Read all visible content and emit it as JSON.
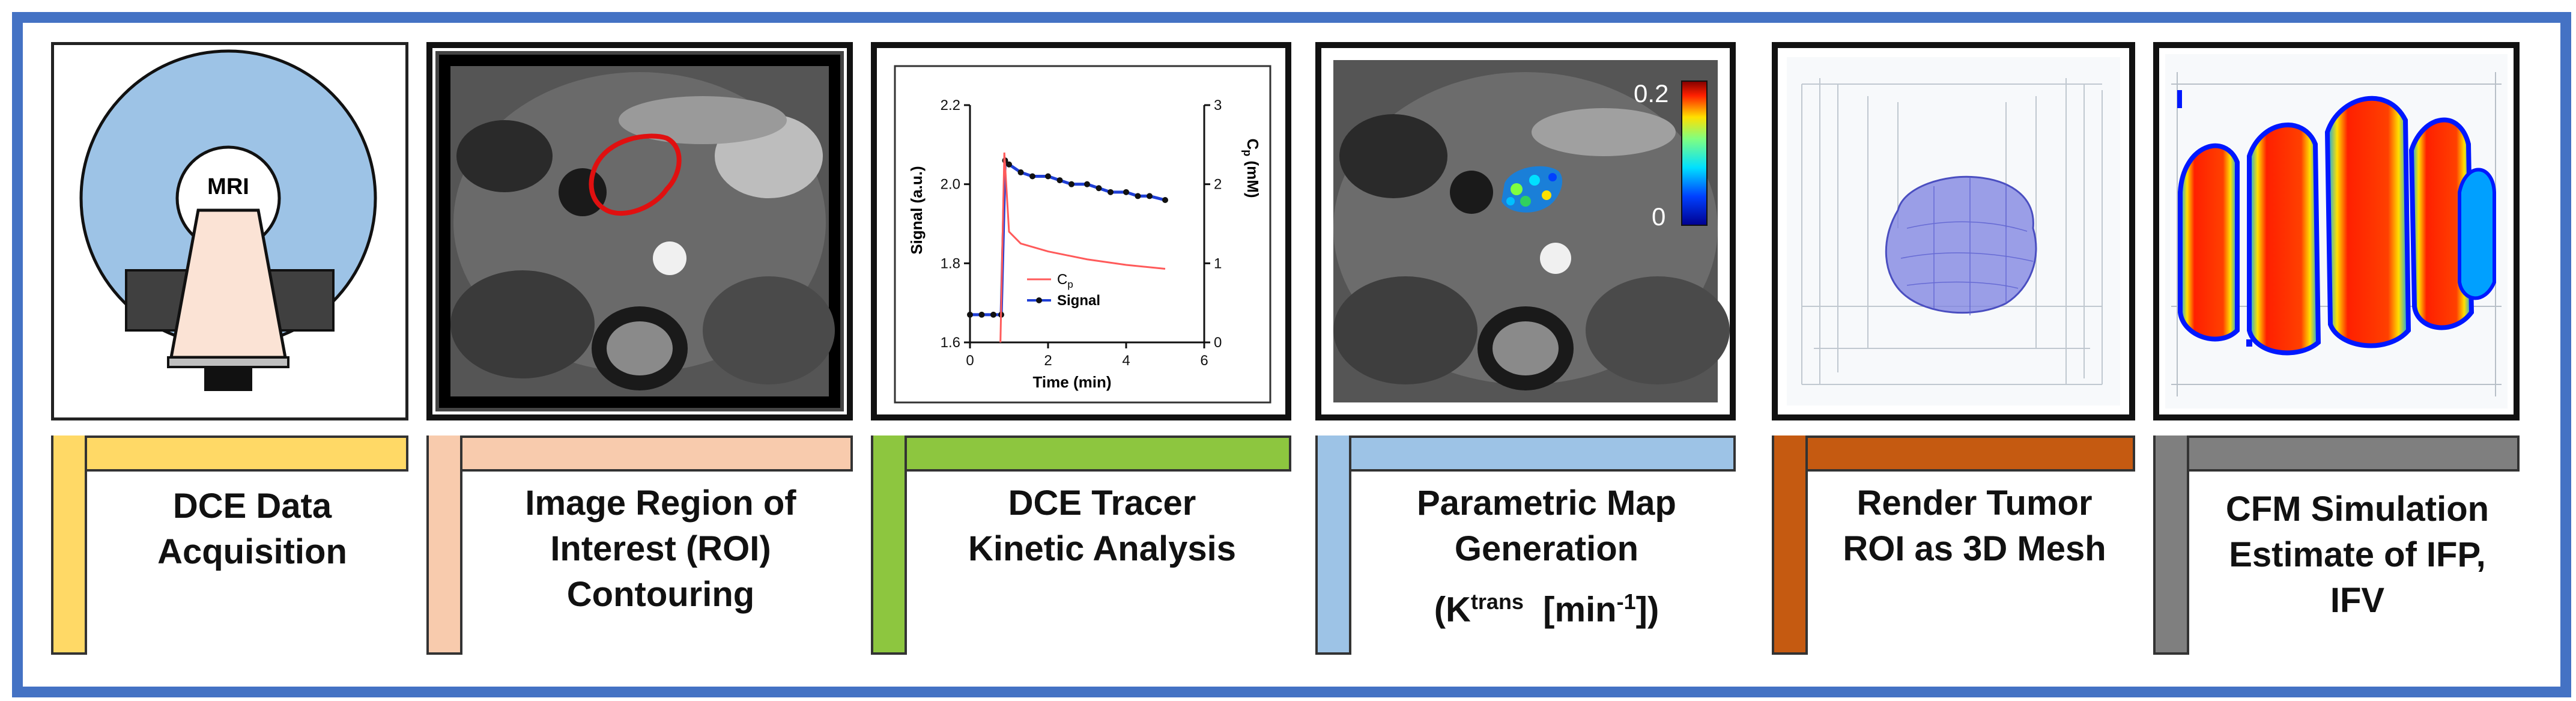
{
  "steps": [
    {
      "label_lines": [
        "DCE Data",
        "Acquisition"
      ],
      "color": "#ffd966"
    },
    {
      "label_lines": [
        "Image Region of",
        "Interest (ROI)",
        "Contouring"
      ],
      "color": "#f8cbad"
    },
    {
      "label_lines": [
        "DCE Tracer",
        "Kinetic Analysis"
      ],
      "color": "#8dc63f"
    },
    {
      "label_lines": [
        "Parametric Map",
        "Generation"
      ],
      "label_formula": {
        "prefix": "(K",
        "sup": "trans",
        "mid": "  [min",
        "sup2": "-1",
        "suffix": "])"
      },
      "color": "#9dc3e6"
    },
    {
      "label_lines": [
        "Render Tumor",
        "ROI as 3D Mesh"
      ],
      "color": "#c55a11"
    },
    {
      "label_lines": [
        "CFM Simulation",
        "Estimate of IFP,",
        "IFV"
      ],
      "color": "#7f7f7f"
    }
  ],
  "mri_label": "MRI",
  "parametric_map": {
    "scale_max": "0.2",
    "scale_min": "0"
  },
  "kinetic_chart": {
    "y_left_label": "Signal (a.u.)",
    "y_right_label": "Cp (mM)",
    "y_right_label_main": "C",
    "y_right_label_sub": "p",
    "y_right_label_unit": " (mM)",
    "x_label": "Time (min)",
    "legend_cp_main": "C",
    "legend_cp_sub": "p",
    "legend_signal": "Signal",
    "x_ticks": [
      "0",
      "2",
      "4",
      "6"
    ],
    "y_left_ticks": [
      "1.6",
      "1.8",
      "2.0",
      "2.2"
    ],
    "y_right_ticks": [
      "0",
      "1",
      "2",
      "3"
    ]
  },
  "chart_data": {
    "type": "line",
    "title": "",
    "xlabel": "Time (min)",
    "ylabel": "Signal (a.u.)",
    "y2label": "Cp (mM)",
    "xlim": [
      0,
      6
    ],
    "ylim": [
      1.6,
      2.2
    ],
    "y2lim": [
      0,
      3
    ],
    "legend": "inside-right",
    "series": [
      {
        "name": "Signal",
        "axis": "left",
        "color": "#1f3fd6",
        "x": [
          0,
          0.3,
          0.6,
          0.8,
          0.9,
          1.0,
          1.3,
          1.6,
          2.0,
          2.3,
          2.6,
          3.0,
          3.3,
          3.6,
          4.0,
          4.3,
          4.6,
          5.0
        ],
        "y": [
          1.67,
          1.67,
          1.67,
          1.67,
          2.06,
          2.05,
          2.03,
          2.02,
          2.02,
          2.01,
          2.0,
          2.0,
          1.99,
          1.98,
          1.98,
          1.97,
          1.97,
          1.96
        ]
      },
      {
        "name": "Cp",
        "axis": "right",
        "color": "#ff5a5a",
        "x": [
          0.78,
          0.88,
          1.0,
          1.3,
          2.0,
          3.0,
          4.0,
          5.0
        ],
        "y": [
          0,
          2.4,
          1.4,
          1.25,
          1.15,
          1.05,
          0.98,
          0.93
        ]
      }
    ]
  }
}
